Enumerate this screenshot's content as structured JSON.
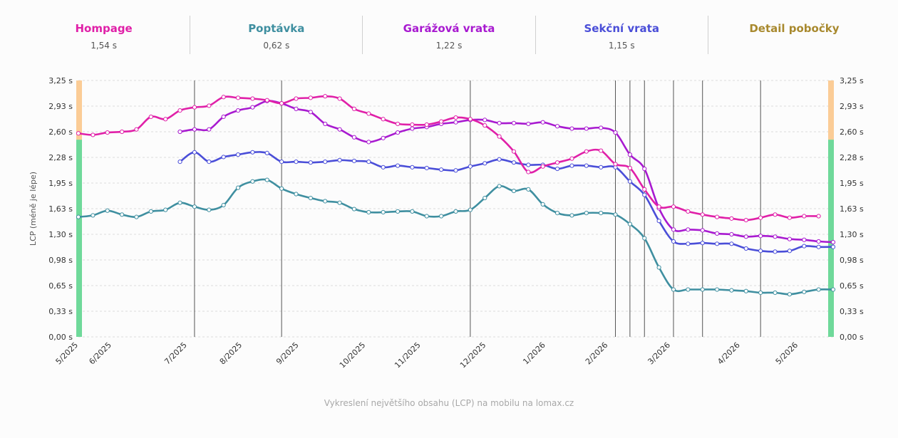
{
  "summary": [
    {
      "name": "Hompage",
      "value": "1,54 s",
      "color": "#e020a8"
    },
    {
      "name": "Poptávka",
      "value": "0,62 s",
      "color": "#3f8fa0"
    },
    {
      "name": "Garážová vrata",
      "value": "1,22 s",
      "color": "#a81ad0"
    },
    {
      "name": "Sekční vrata",
      "value": "1,15 s",
      "color": "#4a4ed8"
    },
    {
      "name": "Detail pobočky",
      "value": "",
      "color": "#a8892e"
    }
  ],
  "chart_data": {
    "type": "line",
    "ylabel": "LCP (méně je lépe)",
    "ylim": [
      0,
      3.25
    ],
    "yticks": [
      "0,00 s",
      "0,33 s",
      "0,65 s",
      "0,98 s",
      "1,30 s",
      "1,63 s",
      "1,95 s",
      "2,28 s",
      "2,60 s",
      "2,93 s",
      "3,25 s"
    ],
    "xlim": [
      0,
      52
    ],
    "xticks": [
      {
        "label": "5/2025",
        "x": 0
      },
      {
        "label": "6/2025",
        "x": 2.3
      },
      {
        "label": "7/2025",
        "x": 7.5
      },
      {
        "label": "8/2025",
        "x": 11.3
      },
      {
        "label": "9/2025",
        "x": 15.2
      },
      {
        "label": "10/2025",
        "x": 19.8
      },
      {
        "label": "11/2025",
        "x": 23.6
      },
      {
        "label": "12/2025",
        "x": 28.1
      },
      {
        "label": "1/2026",
        "x": 32.2
      },
      {
        "label": "2/2026",
        "x": 36.5
      },
      {
        "label": "3/2026",
        "x": 40.8
      },
      {
        "label": "4/2026",
        "x": 45.6
      },
      {
        "label": "5/2026",
        "x": 49.6
      }
    ],
    "thresholds": {
      "good": 2.5,
      "needs_improvement": 4.0,
      "good_color": "#6fd99a",
      "ni_color": "#fbcc96"
    },
    "events_x": [
      8,
      14,
      27,
      37,
      38,
      39,
      41,
      43,
      47
    ],
    "series": [
      {
        "name": "Hompage",
        "color": "#e020a8",
        "start": 0,
        "values": [
          2.58,
          2.56,
          2.59,
          2.6,
          2.63,
          2.79,
          2.76,
          2.87,
          2.91,
          2.93,
          3.04,
          3.03,
          3.02,
          3.0,
          2.96,
          3.02,
          3.03,
          3.05,
          3.02,
          2.89,
          2.83,
          2.76,
          2.7,
          2.69,
          2.69,
          2.73,
          2.78,
          2.76,
          2.68,
          2.54,
          2.35,
          2.09,
          2.16,
          2.21,
          2.26,
          2.35,
          2.36,
          2.19,
          2.14,
          1.87,
          1.65,
          1.65,
          1.59,
          1.55,
          1.52,
          1.5,
          1.48,
          1.51,
          1.55,
          1.51,
          1.53,
          1.53
        ]
      },
      {
        "name": "Poptávka",
        "color": "#3f8fa0",
        "start": 0,
        "values": [
          1.52,
          1.54,
          1.6,
          1.55,
          1.52,
          1.59,
          1.61,
          1.7,
          1.65,
          1.61,
          1.67,
          1.89,
          1.97,
          1.99,
          1.88,
          1.81,
          1.76,
          1.72,
          1.7,
          1.62,
          1.58,
          1.58,
          1.59,
          1.59,
          1.53,
          1.53,
          1.59,
          1.61,
          1.76,
          1.91,
          1.85,
          1.87,
          1.68,
          1.57,
          1.54,
          1.57,
          1.57,
          1.55,
          1.43,
          1.25,
          0.88,
          0.6,
          0.6,
          0.6,
          0.6,
          0.59,
          0.58,
          0.56,
          0.56,
          0.54,
          0.57,
          0.6,
          0.6
        ]
      },
      {
        "name": "Garážová vrata",
        "color": "#a81ad0",
        "start": 7,
        "values": [
          2.6,
          2.63,
          2.63,
          2.79,
          2.87,
          2.91,
          2.99,
          2.96,
          2.89,
          2.85,
          2.7,
          2.63,
          2.53,
          2.47,
          2.52,
          2.59,
          2.64,
          2.66,
          2.7,
          2.72,
          2.75,
          2.75,
          2.71,
          2.71,
          2.7,
          2.72,
          2.67,
          2.64,
          2.64,
          2.65,
          2.59,
          2.31,
          2.13,
          1.63,
          1.36,
          1.36,
          1.35,
          1.31,
          1.3,
          1.27,
          1.28,
          1.27,
          1.24,
          1.23,
          1.21,
          1.2
        ]
      },
      {
        "name": "Sekční vrata",
        "color": "#4a4ed8",
        "start": 7,
        "values": [
          2.22,
          2.34,
          2.22,
          2.28,
          2.31,
          2.34,
          2.33,
          2.22,
          2.22,
          2.21,
          2.22,
          2.24,
          2.23,
          2.22,
          2.15,
          2.17,
          2.15,
          2.14,
          2.12,
          2.11,
          2.16,
          2.2,
          2.25,
          2.21,
          2.18,
          2.18,
          2.13,
          2.17,
          2.17,
          2.15,
          2.15,
          1.97,
          1.8,
          1.47,
          1.21,
          1.18,
          1.19,
          1.18,
          1.18,
          1.12,
          1.09,
          1.08,
          1.09,
          1.15,
          1.14,
          1.14
        ]
      }
    ]
  },
  "caption": "Vykreslení největšího obsahu (LCP) na mobilu na lomax.cz"
}
